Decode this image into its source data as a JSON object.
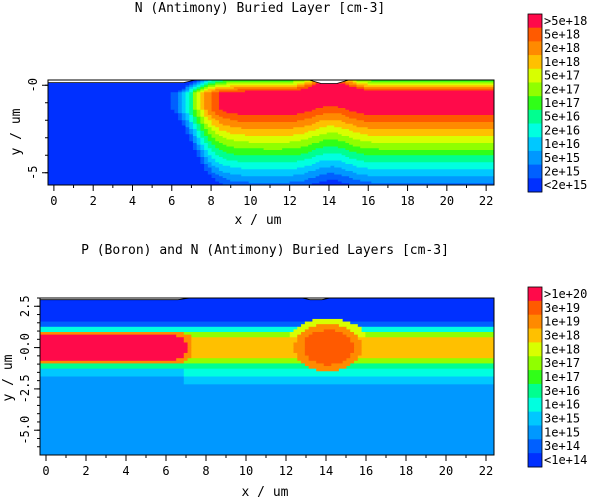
{
  "chart_data": [
    {
      "type": "heatmap",
      "title": "N (Antimony) Buried Layer [cm-3]",
      "xlabel": "x / um",
      "ylabel": "y / um",
      "xlim": [
        -0.3,
        22.4
      ],
      "ylim": [
        -5.7,
        0.3
      ],
      "x_ticks": [
        "0",
        "2",
        "4",
        "6",
        "8",
        "10",
        "12",
        "14",
        "16",
        "18",
        "20",
        "22"
      ],
      "y_ticks": [
        "-0",
        "-5"
      ],
      "legend": {
        "placement": "right",
        "labels": [
          ">5e+18",
          "5e+18",
          "2e+18",
          "1e+18",
          "5e+17",
          "2e+17",
          "1e+17",
          "5e+16",
          "2e+16",
          "1e+16",
          "5e+15",
          "2e+15",
          "<2e+15"
        ],
        "colors": [
          "#ff0a4a",
          "#ff5a00",
          "#ff8a00",
          "#ffc000",
          "#d8ff00",
          "#90ff00",
          "#30ff18",
          "#00ff90",
          "#00ffe0",
          "#00c8ff",
          "#0098ff",
          "#0060ff",
          "#0030ff"
        ]
      },
      "surface": [
        [
          -0.3,
          0.15
        ],
        [
          6.6,
          0.15
        ],
        [
          7.2,
          0.3
        ],
        [
          13.0,
          0.3
        ],
        [
          13.6,
          0.1
        ],
        [
          14.4,
          0.1
        ],
        [
          15.0,
          0.3
        ],
        [
          22.4,
          0.3
        ]
      ],
      "features": [
        {
          "kind": "buried-layer",
          "x_start": 7.0,
          "x_end": 22.4,
          "y_top": -0.1,
          "peak_x": 14.0
        }
      ]
    },
    {
      "type": "heatmap",
      "title": "P (Boron) and N (Antimony) Buried Layers [cm-3]",
      "xlabel": "x / um",
      "ylabel": "y / um",
      "xlim": [
        -0.3,
        22.4
      ],
      "ylim": [
        -6.5,
        3.0
      ],
      "x_ticks": [
        "0",
        "2",
        "4",
        "6",
        "8",
        "10",
        "12",
        "14",
        "16",
        "18",
        "20",
        "22"
      ],
      "y_ticks": [
        "2.5",
        "-0.0",
        "-2.5",
        "-5.0"
      ],
      "legend": {
        "placement": "right",
        "labels": [
          ">1e+20",
          "3e+19",
          "1e+19",
          "3e+18",
          "1e+18",
          "3e+17",
          "1e+17",
          "3e+16",
          "1e+16",
          "3e+15",
          "1e+15",
          "3e+14",
          "<1e+14"
        ],
        "colors": [
          "#ff0a4a",
          "#ff5a00",
          "#ff8a00",
          "#ffc000",
          "#d8ff00",
          "#90ff00",
          "#30ff18",
          "#00ff90",
          "#00ffe0",
          "#00c8ff",
          "#0098ff",
          "#0060ff",
          "#0030ff"
        ]
      },
      "surface": [
        [
          -0.3,
          2.9
        ],
        [
          6.6,
          2.9
        ],
        [
          7.2,
          3.0
        ],
        [
          12.8,
          3.0
        ],
        [
          13.2,
          2.9
        ],
        [
          13.8,
          2.9
        ],
        [
          14.2,
          3.0
        ],
        [
          22.4,
          3.0
        ]
      ],
      "features": [
        {
          "kind": "p-buried-layer",
          "x_start": -0.3,
          "x_end": 7.0,
          "y_center": 0.0
        },
        {
          "kind": "n-buried-core",
          "x_center": 14.1,
          "y_center": 0.0
        }
      ]
    }
  ]
}
